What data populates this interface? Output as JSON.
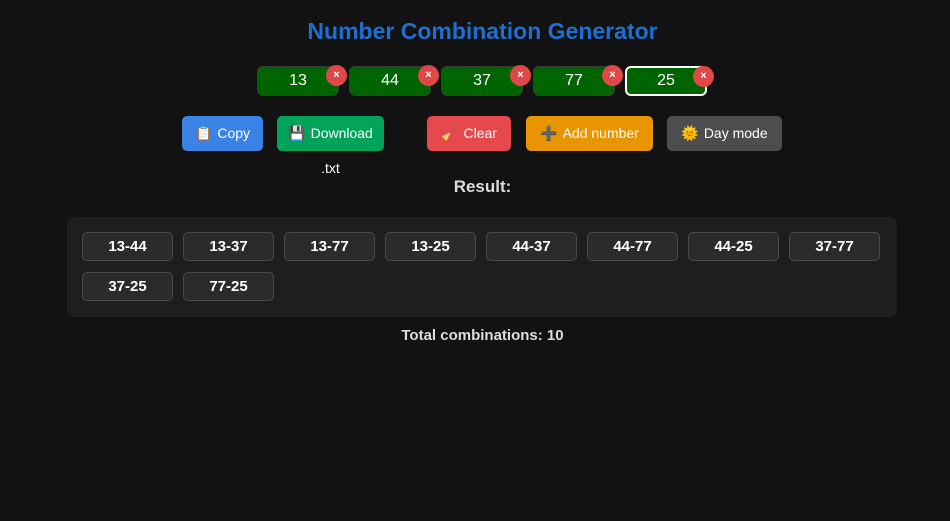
{
  "title": "Number Combination Generator",
  "numbers": [
    "13",
    "44",
    "37",
    "77",
    "25"
  ],
  "remove_icon": "×",
  "buttons": [
    {
      "label": "Copy",
      "icon": "📋",
      "color": "#3b82e6"
    },
    {
      "label": "Download .txt",
      "icon": "💾",
      "color": "#00a35a"
    },
    {
      "label": "Clear",
      "icon": "🧹",
      "color": "#e5484d"
    },
    {
      "label": "Add number",
      "icon": "➕",
      "color": "#e89500"
    },
    {
      "label": "Day mode",
      "icon": "🌞",
      "color": "#4d4d4d"
    }
  ],
  "result_label": "Result:",
  "combinations": [
    "13-44",
    "13-37",
    "13-77",
    "13-25",
    "44-37",
    "44-77",
    "44-25",
    "37-77",
    "37-25",
    "77-25"
  ],
  "total": "Total combinations: 10"
}
